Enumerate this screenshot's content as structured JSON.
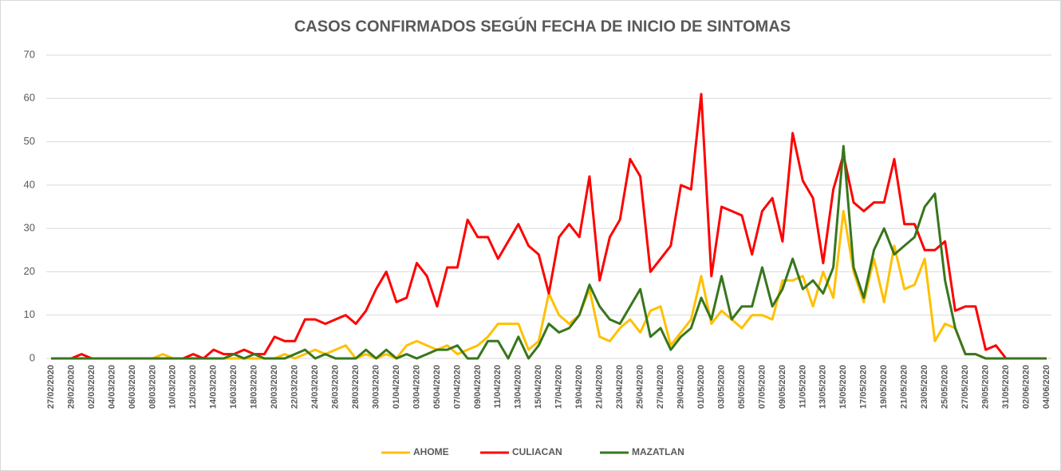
{
  "chart_data": {
    "type": "line",
    "title": "CASOS CONFIRMADOS SEGÚN FECHA DE INICIO DE SINTOMAS",
    "categories": [
      "27/02/2020",
      null,
      "29/02/2020",
      null,
      "02/03/2020",
      null,
      "04/03/2020",
      null,
      "06/03/2020",
      null,
      "08/03/2020",
      null,
      "10/03/2020",
      null,
      "12/03/2020",
      null,
      "14/03/2020",
      null,
      "16/03/2020",
      null,
      "18/03/2020",
      null,
      "20/03/2020",
      null,
      "22/03/2020",
      null,
      "24/03/2020",
      null,
      "26/03/2020",
      null,
      "28/03/2020",
      null,
      "30/03/2020",
      null,
      "01/04/2020",
      null,
      "03/04/2020",
      null,
      "05/04/2020",
      null,
      "07/04/2020",
      null,
      "09/04/2020",
      null,
      "11/04/2020",
      null,
      "13/04/2020",
      null,
      "15/04/2020",
      null,
      "17/04/2020",
      null,
      "19/04/2020",
      null,
      "21/04/2020",
      null,
      "23/04/2020",
      null,
      "25/04/2020",
      null,
      "27/04/2020",
      null,
      "29/04/2020",
      null,
      "01/05/2020",
      null,
      "03/05/2020",
      null,
      "05/05/2020",
      null,
      "07/05/2020",
      null,
      "09/05/2020",
      null,
      "11/05/2020",
      null,
      "13/05/2020",
      null,
      "15/05/2020",
      null,
      "17/05/2020",
      null,
      "19/05/2020",
      null,
      "21/05/2020",
      null,
      "23/05/2020",
      null,
      "25/05/2020",
      null,
      "27/05/2020",
      null,
      "29/05/2020",
      null,
      "31/05/2020",
      null,
      "02/06/2020",
      null,
      "04/06/2020"
    ],
    "series": [
      {
        "name": "AHOME",
        "color": "#ffc000",
        "values": [
          0,
          0,
          0,
          0,
          0,
          0,
          0,
          0,
          0,
          0,
          0,
          1,
          0,
          0,
          0,
          0,
          0,
          0,
          0,
          0,
          0,
          0,
          0,
          1,
          0,
          1,
          2,
          1,
          2,
          3,
          0,
          1,
          0,
          1,
          0,
          3,
          4,
          3,
          2,
          3,
          1,
          2,
          3,
          5,
          8,
          8,
          8,
          2,
          4,
          15,
          10,
          8,
          10,
          16,
          5,
          4,
          7,
          9,
          6,
          11,
          12,
          3,
          6,
          9,
          19,
          8,
          11,
          9,
          7,
          10,
          10,
          9,
          18,
          18,
          19,
          12,
          20,
          14,
          34,
          20,
          13,
          23,
          13,
          26,
          16,
          17,
          23,
          4,
          8,
          7,
          1,
          1,
          0,
          0,
          0,
          0,
          0,
          0,
          0
        ]
      },
      {
        "name": "CULIACAN",
        "color": "#ff0000",
        "values": [
          0,
          0,
          0,
          1,
          0,
          0,
          0,
          0,
          0,
          0,
          0,
          0,
          0,
          0,
          1,
          0,
          2,
          1,
          1,
          2,
          1,
          1,
          5,
          4,
          4,
          9,
          9,
          8,
          9,
          10,
          8,
          11,
          16,
          20,
          13,
          14,
          22,
          19,
          12,
          21,
          21,
          32,
          28,
          28,
          23,
          27,
          31,
          26,
          24,
          15,
          28,
          31,
          28,
          42,
          18,
          28,
          32,
          46,
          42,
          20,
          23,
          26,
          40,
          39,
          61,
          19,
          35,
          34,
          33,
          24,
          34,
          37,
          27,
          52,
          41,
          37,
          22,
          39,
          47,
          36,
          34,
          36,
          36,
          46,
          31,
          31,
          25,
          25,
          27,
          11,
          12,
          12,
          2,
          3,
          0,
          0,
          0,
          0,
          0
        ]
      },
      {
        "name": "MAZATLAN",
        "color": "#38761d",
        "values": [
          0,
          0,
          0,
          0,
          0,
          0,
          0,
          0,
          0,
          0,
          0,
          0,
          0,
          0,
          0,
          0,
          0,
          0,
          1,
          0,
          1,
          0,
          0,
          0,
          1,
          2,
          0,
          1,
          0,
          0,
          0,
          2,
          0,
          2,
          0,
          1,
          0,
          1,
          2,
          2,
          3,
          0,
          0,
          4,
          4,
          0,
          5,
          0,
          3,
          8,
          6,
          7,
          10,
          17,
          12,
          9,
          8,
          12,
          16,
          5,
          7,
          2,
          5,
          7,
          14,
          9,
          19,
          9,
          12,
          12,
          21,
          12,
          16,
          23,
          16,
          18,
          15,
          21,
          49,
          21,
          14,
          25,
          30,
          24,
          26,
          28,
          35,
          38,
          18,
          7,
          1,
          1,
          0,
          0,
          0,
          0,
          0,
          0,
          0
        ]
      }
    ],
    "ylim": [
      0,
      70
    ],
    "yticks": [
      0,
      10,
      20,
      30,
      40,
      50,
      60,
      70
    ],
    "grid": true,
    "legend": "bottom"
  }
}
